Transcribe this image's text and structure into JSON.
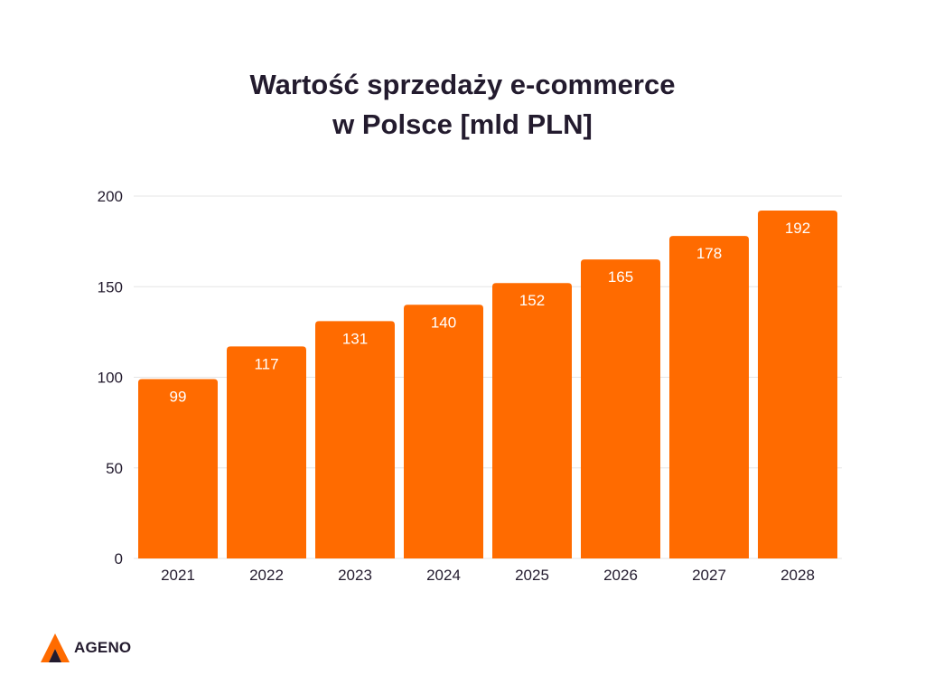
{
  "colors": {
    "bar": "#ff6b00",
    "text": "#231b2e",
    "grid": "#e6e6e6",
    "value_label": "#ffffff"
  },
  "chart_data": {
    "type": "bar",
    "title_lines": [
      "Wartość sprzedaży e-commerce",
      "w Polsce [mld PLN]"
    ],
    "categories": [
      "2021",
      "2022",
      "2023",
      "2024",
      "2025",
      "2026",
      "2027",
      "2028"
    ],
    "values": [
      99,
      117,
      131,
      140,
      152,
      165,
      178,
      192
    ],
    "ylim": [
      0,
      200
    ],
    "yticks": [
      0,
      50,
      100,
      150,
      200
    ],
    "grid": true,
    "data_labels": true
  },
  "brand": {
    "name": "AGENO",
    "icon": "ageno-logo-icon"
  }
}
